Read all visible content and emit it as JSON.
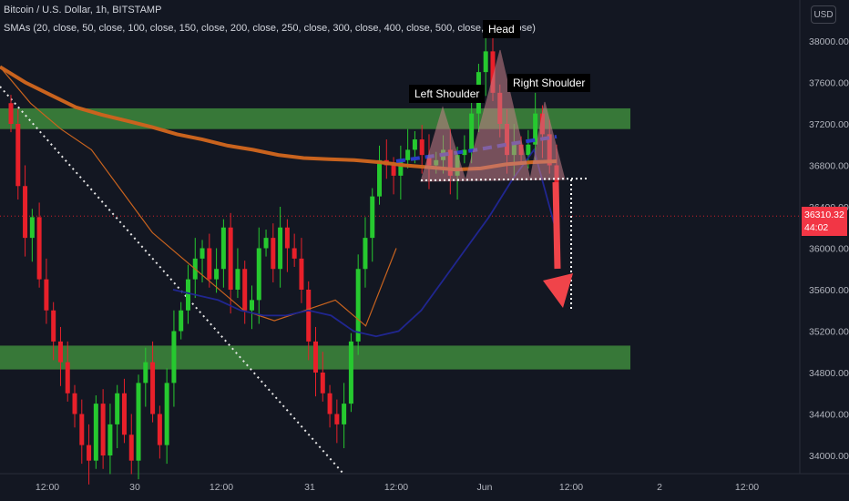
{
  "header": {
    "symbol": "Bitcoin / U.S. Dollar, 1h, BITSTAMP",
    "indicators": "SMAs (20, close, 50, close, 100, close, 150, close, 200, close, 250, close, 300, close, 400, close, 500, close, 600, close)"
  },
  "currency_button": "USD",
  "last_price": {
    "value": "36310.32",
    "countdown": "44:02"
  },
  "annotations": {
    "head": "Head",
    "left_shoulder": "Left Shoulder",
    "right_shoulder": "Right Shoulder"
  },
  "colors": {
    "background": "#131722",
    "bull": "#26c92f",
    "bear": "#e8202a",
    "zone": "#3e8a3c",
    "sma_orange": "#c9631e",
    "sma_blue": "#202690",
    "pattern": "#c8808a",
    "arrow": "#f0444a"
  },
  "chart_data": {
    "type": "candlestick",
    "title": "Bitcoin / U.S. Dollar, 1h, BITSTAMP",
    "y_axis": {
      "ticks": [
        "38000.00",
        "37600.00",
        "37200.00",
        "36800.00",
        "36400.00",
        "36000.00",
        "35600.00",
        "35200.00",
        "34800.00",
        "34400.00",
        "34000.00"
      ],
      "range": [
        33800,
        38400
      ],
      "side": "right"
    },
    "x_axis": {
      "ticks": [
        "12:00",
        "30",
        "12:00",
        "31",
        "12:00",
        "Jun",
        "12:00",
        "2",
        "12:00"
      ]
    },
    "zones": [
      {
        "low": 37150,
        "high": 37350
      },
      {
        "low": 34830,
        "high": 35060
      }
    ],
    "closes": [
      37200,
      36600,
      36100,
      36300,
      35700,
      35400,
      35100,
      34900,
      34600,
      34400,
      34100,
      33950,
      34500,
      34000,
      34300,
      34600,
      34200,
      33950,
      34700,
      34900,
      34400,
      34100,
      34700,
      35200,
      35400,
      35700,
      35900,
      36000,
      35700,
      35800,
      36200,
      35600,
      35800,
      35400,
      35500,
      36000,
      36100,
      35800,
      36200,
      36000,
      35900,
      35600,
      35100,
      34800,
      34600,
      34400,
      34300,
      34500,
      35100,
      35800,
      36100,
      36500,
      36850,
      36800,
      36700,
      36850,
      36950,
      37050,
      36900,
      36800,
      36850,
      36950,
      36700,
      36900,
      36950,
      37300,
      37700,
      37900,
      37500,
      37200,
      36900,
      37000,
      36900,
      37000,
      37300,
      37100,
      36800,
      36310
    ],
    "sma_orange_thick": [
      37750,
      37600,
      37480,
      37360,
      37290,
      37230,
      37170,
      37100,
      37050,
      36990,
      36950,
      36900,
      36870,
      36860,
      36850,
      36830,
      36800,
      36780,
      36760,
      36770,
      36810,
      36830,
      36840
    ],
    "sma_orange_thin": [
      37750,
      37400,
      37150,
      36950,
      36550,
      36150,
      35900,
      35650,
      35400,
      35300,
      35400,
      35500,
      35250,
      36000
    ],
    "sma_blue": [
      35600,
      35550,
      35500,
      35400,
      35350,
      35350,
      35400,
      35350,
      35200,
      35150,
      35200,
      35400,
      35700,
      36000,
      36300,
      36650,
      36950,
      36150
    ],
    "last_price_line": 36310.32
  }
}
